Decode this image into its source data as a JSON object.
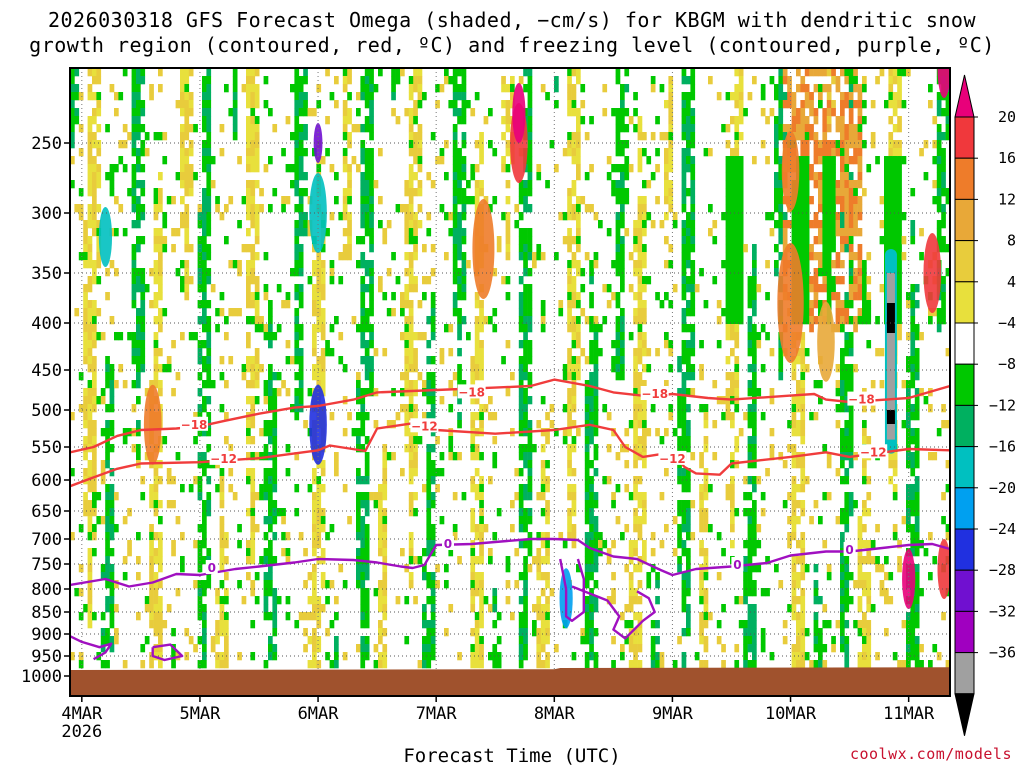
{
  "title_line1": "2026030318 GFS Forecast Omega (shaded, −cm/s) for KBGM with dendritic snow",
  "title_line2": "growth region (contoured, red, ºC) and freezing level (contoured, purple, ºC)",
  "xlabel": "Forecast Time (UTC)",
  "credit": "coolwx.com/models",
  "chart_data": {
    "type": "heatmap",
    "x_axis": {
      "ticks": [
        "4MAR",
        "5MAR",
        "6MAR",
        "7MAR",
        "8MAR",
        "9MAR",
        "10MAR",
        "11MAR"
      ],
      "first_tick_sublabel": "2026",
      "range_days_from_4MAR": [
        -0.1,
        7.35
      ]
    },
    "y_axis": {
      "label": "",
      "unit": "hPa",
      "ticks": [
        250,
        300,
        350,
        400,
        450,
        500,
        550,
        600,
        650,
        700,
        750,
        800,
        850,
        900,
        950,
        1000
      ],
      "range": [
        1025,
        200
      ]
    },
    "colorbar": {
      "tick_labels": [
        "20",
        "16",
        "12",
        "8",
        "4",
        "−4",
        "−8",
        "−12",
        "−16",
        "−20",
        "−24",
        "−28",
        "−32",
        "−36"
      ],
      "colors": [
        "#e8007a",
        "#f0383c",
        "#ee7c2a",
        "#e8a838",
        "#e8cc3c",
        "#e8e03c",
        "#ffffff",
        "#00c800",
        "#00b060",
        "#00c0c0",
        "#00a0f0",
        "#2030e0",
        "#7010d0",
        "#a000c0",
        "#a0a0a0",
        "#000000"
      ]
    },
    "contours": [
      {
        "label": "−18",
        "color": "#f03c3c",
        "points": [
          [
            -0.1,
            558
          ],
          [
            0.1,
            550
          ],
          [
            0.3,
            535
          ],
          [
            0.5,
            527
          ],
          [
            0.8,
            525
          ],
          [
            1.0,
            522
          ],
          [
            1.2,
            515
          ],
          [
            1.5,
            505
          ],
          [
            1.8,
            497
          ],
          [
            2.0,
            495
          ],
          [
            2.3,
            487
          ],
          [
            2.5,
            478
          ],
          [
            3.0,
            475
          ],
          [
            3.5,
            472
          ],
          [
            3.8,
            470
          ],
          [
            4.0,
            462
          ],
          [
            4.3,
            470
          ],
          [
            4.5,
            478
          ],
          [
            4.8,
            483
          ],
          [
            5.0,
            480
          ],
          [
            5.3,
            485
          ],
          [
            5.5,
            487
          ],
          [
            6.0,
            482
          ],
          [
            6.2,
            480
          ],
          [
            6.3,
            487
          ],
          [
            6.5,
            490
          ],
          [
            7.0,
            485
          ],
          [
            7.35,
            470
          ]
        ],
        "labels": [
          [
            0.95,
            520
          ],
          [
            3.3,
            478
          ],
          [
            4.85,
            480
          ],
          [
            6.6,
            487
          ]
        ]
      },
      {
        "label": "−12",
        "color": "#f03c3c",
        "points": [
          [
            -0.1,
            610
          ],
          [
            0.1,
            596
          ],
          [
            0.3,
            583
          ],
          [
            0.5,
            575
          ],
          [
            1.0,
            573
          ],
          [
            1.5,
            567
          ],
          [
            2.0,
            555
          ],
          [
            2.1,
            548
          ],
          [
            2.4,
            556
          ],
          [
            2.5,
            525
          ],
          [
            2.8,
            518
          ],
          [
            3.0,
            527
          ],
          [
            3.5,
            532
          ],
          [
            4.0,
            527
          ],
          [
            4.3,
            520
          ],
          [
            4.5,
            527
          ],
          [
            4.6,
            550
          ],
          [
            4.75,
            565
          ],
          [
            5.0,
            558
          ],
          [
            5.1,
            580
          ],
          [
            5.2,
            590
          ],
          [
            5.4,
            592
          ],
          [
            5.5,
            575
          ],
          [
            6.0,
            565
          ],
          [
            6.3,
            558
          ],
          [
            6.5,
            565
          ],
          [
            7.0,
            553
          ],
          [
            7.35,
            555
          ]
        ],
        "labels": [
          [
            1.2,
            568
          ],
          [
            2.9,
            522
          ],
          [
            5.0,
            568
          ],
          [
            6.7,
            558
          ]
        ]
      },
      {
        "label": "0",
        "color": "#a010c0",
        "points": [
          [
            -0.1,
            792
          ],
          [
            0.2,
            780
          ],
          [
            0.4,
            795
          ],
          [
            0.6,
            787
          ],
          [
            0.8,
            770
          ],
          [
            1.0,
            772
          ],
          [
            1.3,
            760
          ],
          [
            1.5,
            755
          ],
          [
            1.8,
            747
          ],
          [
            2.0,
            740
          ],
          [
            2.3,
            742
          ],
          [
            2.5,
            747
          ],
          [
            2.7,
            755
          ],
          [
            2.8,
            758
          ],
          [
            2.9,
            752
          ],
          [
            3.0,
            712
          ],
          [
            3.3,
            710
          ],
          [
            3.6,
            704
          ],
          [
            3.8,
            700
          ],
          [
            4.0,
            700
          ],
          [
            4.2,
            702
          ],
          [
            4.3,
            718
          ],
          [
            4.5,
            735
          ],
          [
            4.7,
            740
          ],
          [
            4.9,
            762
          ],
          [
            5.0,
            772
          ],
          [
            5.2,
            760
          ],
          [
            5.5,
            755
          ],
          [
            5.8,
            748
          ],
          [
            6.0,
            733
          ],
          [
            6.3,
            725
          ],
          [
            6.5,
            725
          ],
          [
            6.7,
            720
          ],
          [
            7.0,
            712
          ],
          [
            7.2,
            710
          ],
          [
            7.35,
            720
          ]
        ],
        "labels": [
          [
            1.1,
            758
          ],
          [
            3.1,
            710
          ],
          [
            5.55,
            752
          ],
          [
            6.5,
            722
          ]
        ]
      },
      {
        "label": "",
        "color": "#a010c0",
        "points": [
          [
            -0.1,
            905
          ],
          [
            0.0,
            918
          ],
          [
            0.15,
            930
          ],
          [
            0.25,
            922
          ],
          [
            0.2,
            942
          ],
          [
            0.1,
            958
          ]
        ],
        "labels": []
      },
      {
        "label": "",
        "color": "#a010c0",
        "points": [
          [
            0.6,
            930
          ],
          [
            0.75,
            924
          ],
          [
            0.85,
            950
          ],
          [
            0.7,
            960
          ],
          [
            0.6,
            950
          ],
          [
            0.6,
            930
          ]
        ],
        "labels": []
      },
      {
        "label": "",
        "color": "#a010c0",
        "points": [
          [
            4.05,
            740
          ],
          [
            4.1,
            800
          ],
          [
            4.1,
            860
          ],
          [
            4.15,
            870
          ],
          [
            4.25,
            850
          ],
          [
            4.25,
            780
          ],
          [
            4.2,
            740
          ]
        ],
        "labels": []
      },
      {
        "label": "",
        "color": "#a010c0",
        "points": [
          [
            4.15,
            795
          ],
          [
            4.45,
            825
          ],
          [
            4.55,
            860
          ],
          [
            4.5,
            890
          ],
          [
            4.6,
            910
          ],
          [
            4.75,
            870
          ],
          [
            4.85,
            850
          ],
          [
            4.8,
            820
          ],
          [
            4.7,
            805
          ]
        ],
        "labels": []
      }
    ]
  }
}
